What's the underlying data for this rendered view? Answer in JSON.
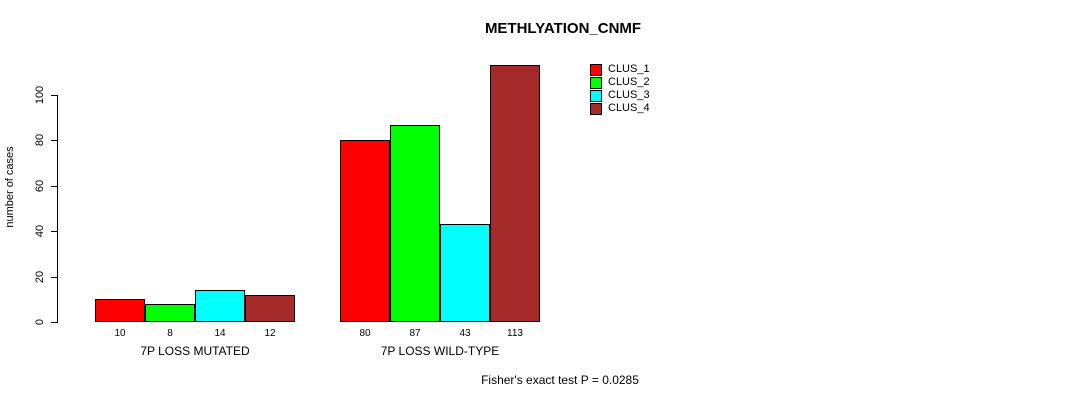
{
  "chart_data": {
    "type": "bar",
    "title": "METHLYATION_CNMF",
    "ylabel": "number of cases",
    "annotation": "Fisher's exact test P = 0.0285",
    "categories": [
      "7P LOSS MUTATED",
      "7P LOSS WILD-TYPE"
    ],
    "series": [
      {
        "name": "CLUS_1",
        "color": "#FF0000",
        "values": [
          10,
          80
        ]
      },
      {
        "name": "CLUS_2",
        "color": "#00FF00",
        "values": [
          8,
          87
        ]
      },
      {
        "name": "CLUS_3",
        "color": "#00FFFF",
        "values": [
          14,
          43
        ]
      },
      {
        "name": "CLUS_4",
        "color": "#A52A2A",
        "values": [
          12,
          113
        ]
      }
    ],
    "yticks": [
      0,
      20,
      40,
      60,
      80,
      100
    ],
    "ylim": [
      0,
      115
    ],
    "grid": false,
    "legend_position": "top-right",
    "value_labels_shown": true
  }
}
